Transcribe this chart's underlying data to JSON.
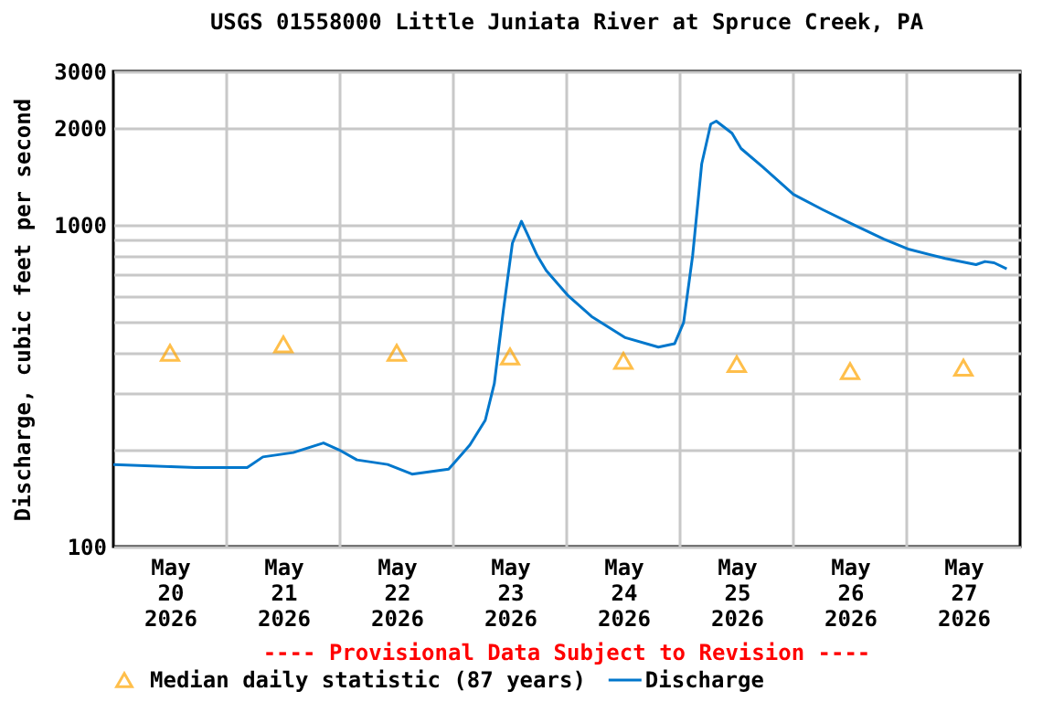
{
  "chart_data": {
    "type": "line",
    "title": "USGS 01558000 Little Juniata River at Spruce Creek, PA",
    "ylabel": "Discharge, cubic feet per second",
    "annotations": [
      "---- Provisional Data Subject to Revision ----"
    ],
    "log": "y",
    "grid": true,
    "legend": "bottom",
    "xlim": [
      "2026-05-20T00:00",
      "2026-05-28T00:00"
    ],
    "xticks": [
      {
        "value": "2026-05-20T12:00",
        "label": "May\n20\n2026"
      },
      {
        "value": "2026-05-21T12:00",
        "label": "May\n21\n2026"
      },
      {
        "value": "2026-05-22T12:00",
        "label": "May\n22\n2026"
      },
      {
        "value": "2026-05-23T12:00",
        "label": "May\n23\n2026"
      },
      {
        "value": "2026-05-24T12:00",
        "label": "May\n24\n2026"
      },
      {
        "value": "2026-05-25T12:00",
        "label": "May\n25\n2026"
      },
      {
        "value": "2026-05-26T12:00",
        "label": "May\n26\n2026"
      },
      {
        "value": "2026-05-27T12:00",
        "label": "May\n27\n2026"
      },
      {
        "value": "2026-05-21T00:00",
        "label": null
      },
      {
        "value": "2026-05-22T00:00",
        "label": null
      },
      {
        "value": "2026-05-23T00:00",
        "label": null
      },
      {
        "value": "2026-05-24T00:00",
        "label": null
      },
      {
        "value": "2026-05-25T00:00",
        "label": null
      },
      {
        "value": "2026-05-26T00:00",
        "label": null
      },
      {
        "value": "2026-05-27T00:00",
        "label": null
      }
    ],
    "ylim": [
      100,
      3000
    ],
    "yticks": [
      100,
      {
        "value": 200,
        "label": null
      },
      {
        "value": 300,
        "label": null
      },
      {
        "value": 400,
        "label": null
      },
      {
        "value": 500,
        "label": null
      },
      {
        "value": 600,
        "label": null
      },
      {
        "value": 700,
        "label": null
      },
      {
        "value": 800,
        "label": null
      },
      {
        "value": 900,
        "label": null
      },
      1000,
      2000,
      3000
    ],
    "series": [
      {
        "name": "Median daily statistic (87 years)",
        "type": "scatter",
        "marker": "triangle",
        "color": "#ffa500",
        "x": [
          "2026-05-20T12:00",
          "2026-05-21T12:00",
          "2026-05-22T12:00",
          "2026-05-23T12:00",
          "2026-05-24T12:00",
          "2026-05-25T12:00",
          "2026-05-26T12:00",
          "2026-05-27T12:00"
        ],
        "values": [
          400,
          425,
          400,
          390,
          378,
          369,
          351,
          360
        ]
      },
      {
        "name": "Discharge",
        "color": "#0077cc",
        "x": [
          "2026-05-20T00:00",
          "2026-05-20T17:25",
          "2026-05-21T04:20",
          "2026-05-21T07:40",
          "2026-05-21T14:05",
          "2026-05-21T20:30",
          "2026-05-21T23:45",
          "2026-05-22T03:35",
          "2026-05-22T10:05",
          "2026-05-22T15:15",
          "2026-05-22T23:00",
          "2026-05-23T03:30",
          "2026-05-23T06:45",
          "2026-05-23T08:40",
          "2026-05-23T10:35",
          "2026-05-23T12:30",
          "2026-05-23T14:25",
          "2026-05-23T17:45",
          "2026-05-23T19:40",
          "2026-05-24T00:10",
          "2026-05-24T05:15",
          "2026-05-24T12:25",
          "2026-05-24T19:25",
          "2026-05-24T22:50",
          "2026-05-25T00:45",
          "2026-05-25T02:40",
          "2026-05-25T04:35",
          "2026-05-25T06:30",
          "2026-05-25T07:40",
          "2026-05-25T11:00",
          "2026-05-25T12:55",
          "2026-05-25T17:30",
          "2026-05-26T00:00",
          "2026-05-26T06:15",
          "2026-05-26T12:45",
          "2026-05-26T19:10",
          "2026-05-27T00:30",
          "2026-05-27T08:10",
          "2026-05-27T14:40",
          "2026-05-27T16:35",
          "2026-05-27T18:30",
          "2026-05-27T21:10"
        ],
        "values": [
          180,
          176,
          176,
          190,
          196,
          210,
          200,
          186,
          180,
          168,
          174,
          207,
          247,
          321,
          542,
          877,
          1026,
          803,
          721,
          605,
          519,
          446,
          417,
          427,
          497,
          803,
          1547,
          2056,
          2100,
          1926,
          1726,
          1513,
          1243,
          1114,
          1000,
          903,
          839,
          786,
          752,
          769,
          762,
          730
        ]
      }
    ]
  }
}
